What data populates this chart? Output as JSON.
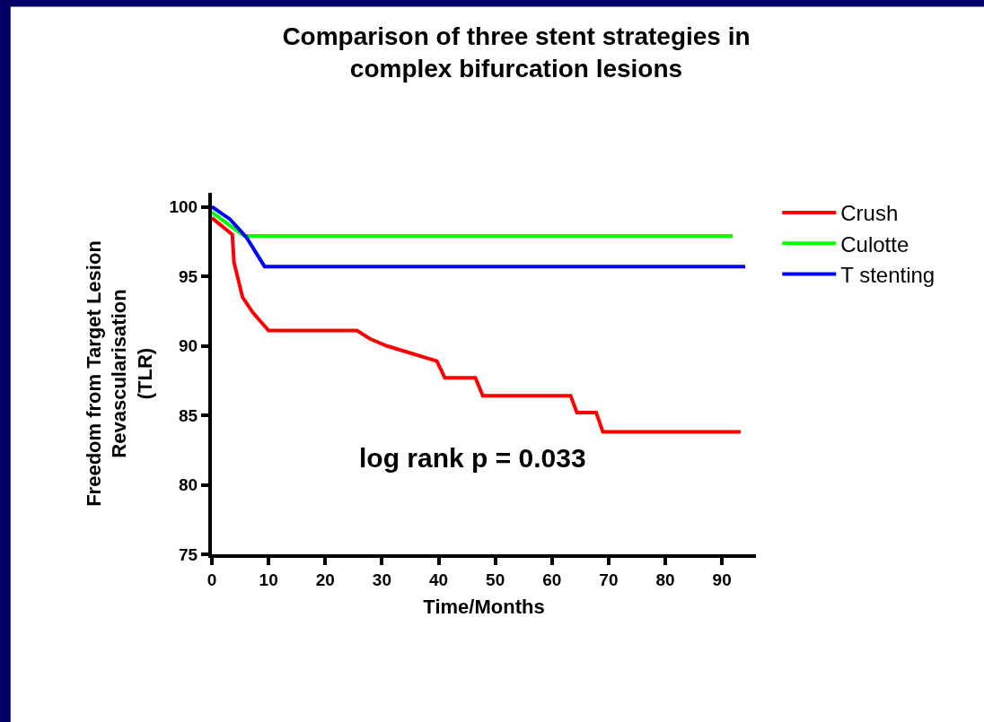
{
  "chart_data": {
    "type": "line",
    "title": "Comparison of three stent strategies in\ncomplex bifurcation lesions",
    "xlabel": "Time/Months",
    "ylabel": "Freedom from Target Lesion\nRevascularisation\n(TLR)",
    "annotations": [
      "log rank p = 0.033"
    ],
    "series": [
      {
        "name": "Crush",
        "color": "#ff0000",
        "x": [
          0,
          3.6,
          3.9,
          5.4,
          7.2,
          10.0,
          25.6,
          27.9,
          30.8,
          39.7,
          41.1,
          46.5,
          47.8,
          63.3,
          64.4,
          67.8,
          69.0,
          93.3
        ],
        "values": [
          99.2,
          98.0,
          96.0,
          93.5,
          92.4,
          91.1,
          91.1,
          90.5,
          90.0,
          88.9,
          87.7,
          87.7,
          86.4,
          86.4,
          85.2,
          85.2,
          83.8,
          83.8
        ]
      },
      {
        "name": "Culotte",
        "color": "#00ff00",
        "x": [
          0,
          5.7,
          91.9
        ],
        "values": [
          99.6,
          97.9,
          97.9
        ]
      },
      {
        "name": "T stenting",
        "color": "#0000ff",
        "x": [
          0,
          3.2,
          6.1,
          9.3,
          94.1
        ],
        "values": [
          100,
          99.1,
          97.8,
          95.7,
          95.7
        ]
      }
    ],
    "xlim": [
      0,
      96
    ],
    "xticks": [
      0,
      10,
      20,
      30,
      40,
      50,
      60,
      70,
      80,
      90
    ],
    "ylim": [
      75,
      101
    ],
    "yticks": [
      75,
      80,
      85,
      90,
      95,
      100
    ],
    "legend": "top right",
    "marker": "none",
    "line_style": "solid"
  }
}
